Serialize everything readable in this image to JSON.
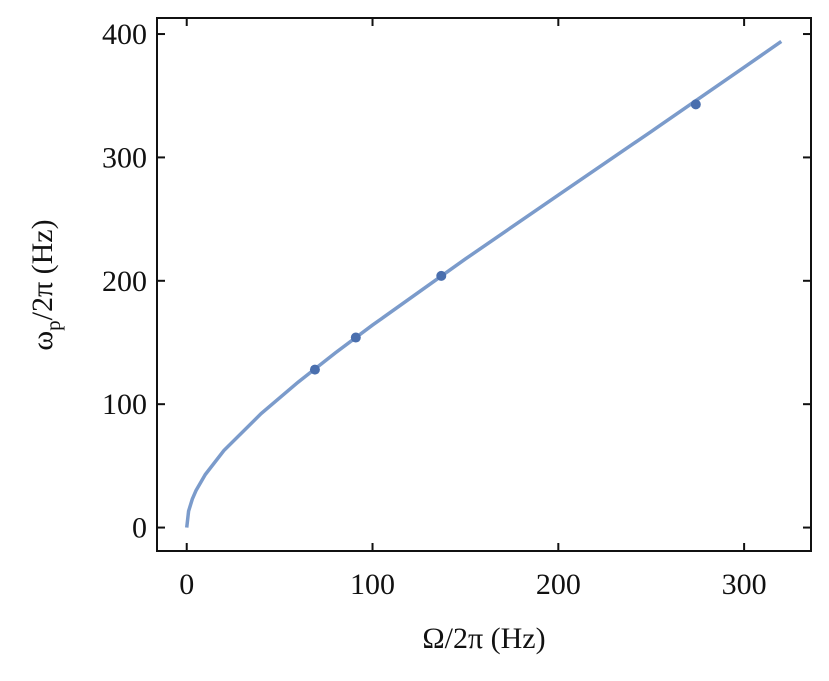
{
  "chart_data": {
    "type": "line",
    "xlabel": "Ω/2π (Hz)",
    "ylabel": {
      "symbol": "ω",
      "subscript": "p",
      "rest": "/2π (Hz)"
    },
    "xlim": [
      -16,
      336
    ],
    "ylim": [
      -19,
      413
    ],
    "xticks": [
      0,
      100,
      200,
      300
    ],
    "yticks": [
      0,
      100,
      200,
      300,
      400
    ],
    "series": [
      {
        "type": "line",
        "color": "#7b9bcb",
        "x": [
          0,
          1,
          3,
          5,
          10,
          20,
          40,
          60,
          80,
          100,
          150,
          200,
          250,
          300,
          320
        ],
        "values": [
          0,
          13.3,
          23.1,
          30,
          43,
          62.4,
          92.3,
          117.9,
          141.6,
          164.1,
          217.7,
          269.5,
          321,
          373,
          394
        ]
      },
      {
        "type": "scatter",
        "color": "#4a6fae",
        "x": [
          69,
          91,
          137,
          274
        ],
        "values": [
          128,
          154,
          204,
          343
        ]
      }
    ]
  }
}
